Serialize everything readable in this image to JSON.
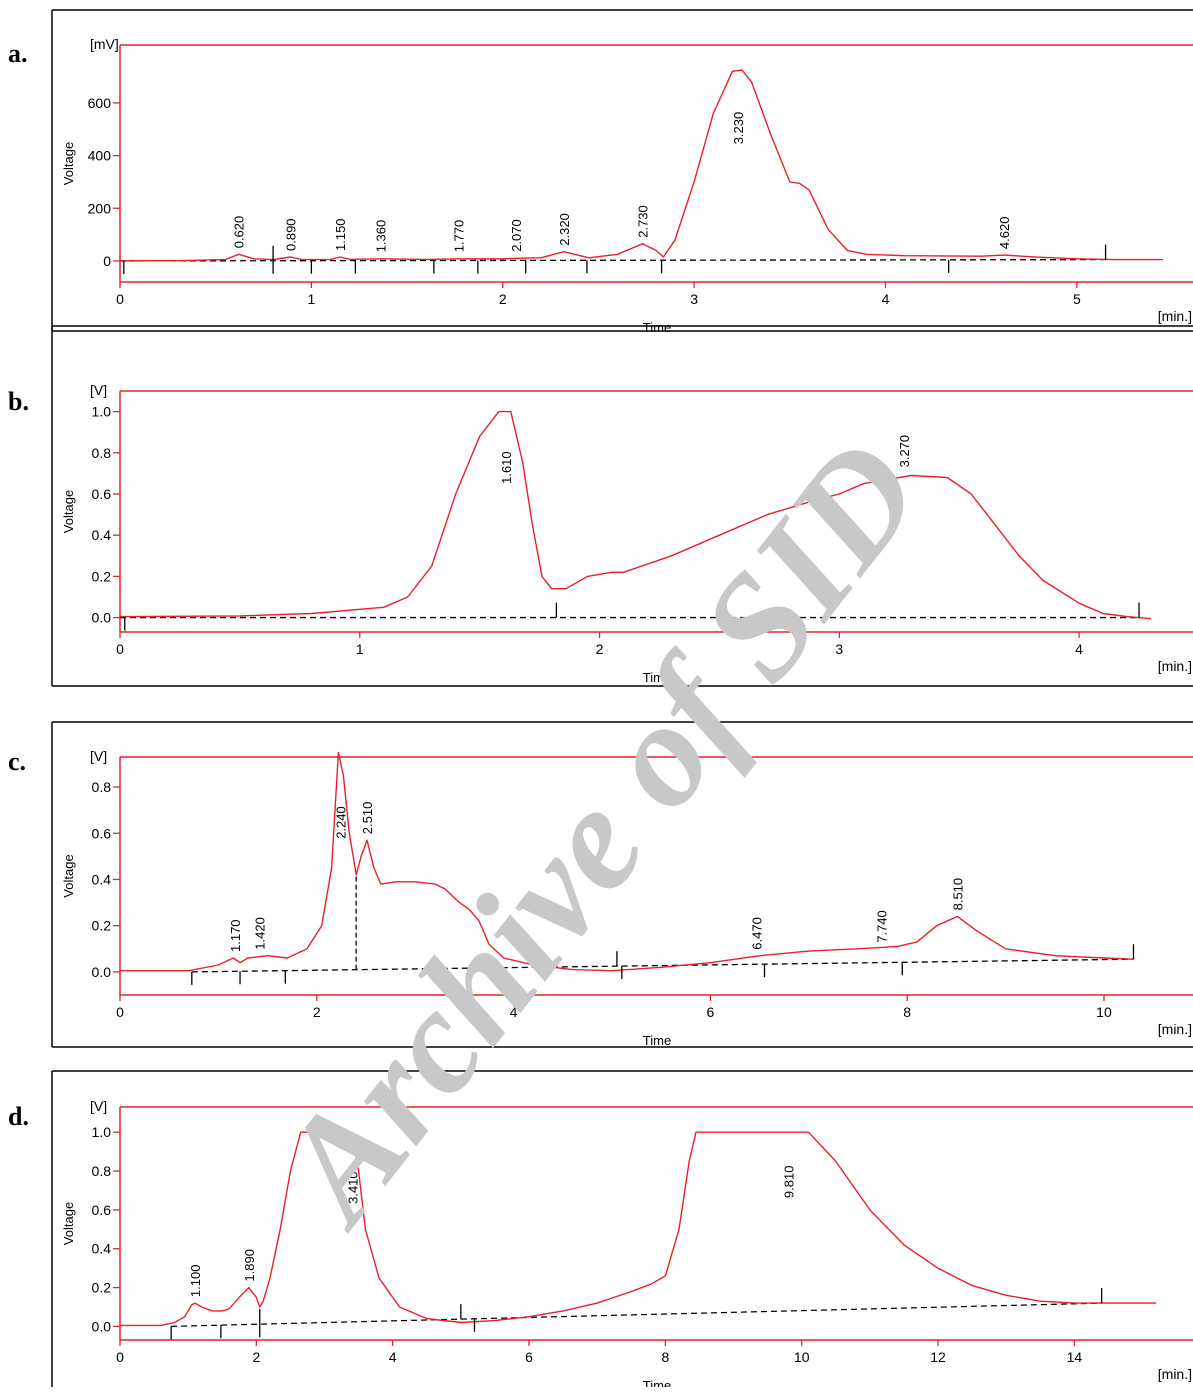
{
  "watermark": "Archive of SID",
  "chart_data": [
    {
      "panel": "a.",
      "type": "line",
      "unit": "[mV]",
      "xlabel": "Time",
      "xunit": "[min.]",
      "ylabel": "Voltage",
      "xlim": [
        0,
        5.45
      ],
      "ylim": [
        -80,
        820
      ],
      "xticks": [
        0,
        1,
        2,
        3,
        4,
        5
      ],
      "yticks": [
        0,
        200,
        400,
        600
      ],
      "x_tick_labels": [
        "0",
        "1",
        "2",
        "3",
        "4",
        "5"
      ],
      "y_tick_labels": [
        "0",
        "200",
        "400",
        "600"
      ],
      "series": [
        {
          "values": [
            [
              0,
              0
            ],
            [
              0.3,
              1
            ],
            [
              0.55,
              5
            ],
            [
              0.62,
              25
            ],
            [
              0.7,
              8
            ],
            [
              0.8,
              5
            ],
            [
              0.89,
              15
            ],
            [
              0.95,
              5
            ],
            [
              1.1,
              6
            ],
            [
              1.15,
              15
            ],
            [
              1.2,
              6
            ],
            [
              1.36,
              8
            ],
            [
              1.6,
              6
            ],
            [
              1.77,
              8
            ],
            [
              2.0,
              8
            ],
            [
              2.07,
              10
            ],
            [
              2.2,
              12
            ],
            [
              2.32,
              35
            ],
            [
              2.45,
              12
            ],
            [
              2.6,
              25
            ],
            [
              2.73,
              65
            ],
            [
              2.8,
              40
            ],
            [
              2.84,
              15
            ],
            [
              2.9,
              80
            ],
            [
              3.0,
              300
            ],
            [
              3.1,
              560
            ],
            [
              3.2,
              720
            ],
            [
              3.25,
              725
            ],
            [
              3.3,
              680
            ],
            [
              3.4,
              480
            ],
            [
              3.5,
              300
            ],
            [
              3.55,
              295
            ],
            [
              3.6,
              270
            ],
            [
              3.7,
              120
            ],
            [
              3.8,
              40
            ],
            [
              3.9,
              25
            ],
            [
              4.1,
              20
            ],
            [
              4.5,
              18
            ],
            [
              4.62,
              22
            ],
            [
              4.8,
              14
            ],
            [
              5.0,
              8
            ],
            [
              5.2,
              5
            ],
            [
              5.45,
              5
            ]
          ]
        }
      ],
      "baseline": [
        [
          0,
          0
        ],
        [
          5.15,
          5
        ]
      ],
      "peak_labels": [
        {
          "x": 0.62,
          "y": 25,
          "text": "0.620"
        },
        {
          "x": 0.89,
          "y": 15,
          "text": "0.890"
        },
        {
          "x": 1.15,
          "y": 15,
          "text": "1.150"
        },
        {
          "x": 1.36,
          "y": 10,
          "text": "1.360"
        },
        {
          "x": 1.77,
          "y": 10,
          "text": "1.770"
        },
        {
          "x": 2.07,
          "y": 12,
          "text": "2.070"
        },
        {
          "x": 2.32,
          "y": 35,
          "text": "2.320"
        },
        {
          "x": 2.73,
          "y": 65,
          "text": "2.730"
        },
        {
          "x": 3.23,
          "y": 420,
          "text": "3.230"
        },
        {
          "x": 4.62,
          "y": 22,
          "text": "4.620"
        }
      ],
      "markers_down": [
        0.02,
        0.8,
        1.0,
        1.23,
        1.64,
        1.87,
        2.12,
        2.44,
        2.83,
        4.33
      ],
      "markers_up": [
        0.8,
        5.15
      ]
    },
    {
      "panel": "b.",
      "type": "line",
      "unit": "[V]",
      "xlabel": "Time",
      "xunit": "[min.]",
      "ylabel": "Voltage",
      "xlim": [
        0,
        4.35
      ],
      "ylim": [
        -0.07,
        1.1
      ],
      "xticks": [
        0,
        1,
        2,
        3,
        4
      ],
      "yticks": [
        0.0,
        0.2,
        0.4,
        0.6,
        0.8,
        1.0
      ],
      "x_tick_labels": [
        "0",
        "1",
        "2",
        "3",
        "4"
      ],
      "y_tick_labels": [
        "0.0",
        "0.2",
        "0.4",
        "0.6",
        "0.8",
        "1.0"
      ],
      "series": [
        {
          "values": [
            [
              0,
              0.005
            ],
            [
              0.5,
              0.008
            ],
            [
              0.8,
              0.02
            ],
            [
              1.0,
              0.04
            ],
            [
              1.1,
              0.05
            ],
            [
              1.2,
              0.1
            ],
            [
              1.3,
              0.25
            ],
            [
              1.4,
              0.6
            ],
            [
              1.5,
              0.88
            ],
            [
              1.58,
              1.0
            ],
            [
              1.63,
              1.0
            ],
            [
              1.68,
              0.75
            ],
            [
              1.72,
              0.45
            ],
            [
              1.76,
              0.2
            ],
            [
              1.8,
              0.14
            ],
            [
              1.86,
              0.14
            ],
            [
              1.95,
              0.2
            ],
            [
              2.05,
              0.22
            ],
            [
              2.1,
              0.22
            ],
            [
              2.3,
              0.3
            ],
            [
              2.5,
              0.4
            ],
            [
              2.7,
              0.5
            ],
            [
              2.9,
              0.57
            ],
            [
              3.0,
              0.6
            ],
            [
              3.1,
              0.65
            ],
            [
              3.3,
              0.69
            ],
            [
              3.45,
              0.68
            ],
            [
              3.55,
              0.6
            ],
            [
              3.65,
              0.45
            ],
            [
              3.75,
              0.3
            ],
            [
              3.85,
              0.18
            ],
            [
              4.0,
              0.07
            ],
            [
              4.1,
              0.02
            ],
            [
              4.2,
              0.005
            ],
            [
              4.3,
              -0.005
            ]
          ]
        }
      ],
      "baseline": [
        [
          0,
          0
        ],
        [
          4.25,
          0
        ]
      ],
      "peak_labels": [
        {
          "x": 1.61,
          "y": 0.62,
          "text": "1.610"
        },
        {
          "x": 3.27,
          "y": 0.7,
          "text": "3.270"
        }
      ],
      "markers_down": [
        0.02
      ],
      "markers_up": [
        1.82,
        4.25
      ]
    },
    {
      "panel": "c.",
      "type": "line",
      "unit": "[V]",
      "xlabel": "Time",
      "xunit": "[min.]",
      "ylabel": "Voltage",
      "xlim": [
        0,
        10.6
      ],
      "ylim": [
        -0.1,
        0.93
      ],
      "xticks": [
        0,
        2,
        4,
        6,
        8,
        10
      ],
      "yticks": [
        0.0,
        0.2,
        0.4,
        0.6,
        0.8
      ],
      "x_tick_labels": [
        "0",
        "2",
        "4",
        "6",
        "8",
        "10"
      ],
      "y_tick_labels": [
        "0.0",
        "0.2",
        "0.4",
        "0.6",
        "0.8"
      ],
      "series": [
        {
          "values": [
            [
              0,
              0.005
            ],
            [
              0.7,
              0.005
            ],
            [
              1.0,
              0.03
            ],
            [
              1.15,
              0.06
            ],
            [
              1.22,
              0.04
            ],
            [
              1.3,
              0.06
            ],
            [
              1.5,
              0.07
            ],
            [
              1.7,
              0.06
            ],
            [
              1.9,
              0.1
            ],
            [
              2.05,
              0.2
            ],
            [
              2.15,
              0.45
            ],
            [
              2.22,
              0.95
            ],
            [
              2.27,
              0.85
            ],
            [
              2.33,
              0.6
            ],
            [
              2.4,
              0.42
            ],
            [
              2.45,
              0.5
            ],
            [
              2.51,
              0.57
            ],
            [
              2.58,
              0.45
            ],
            [
              2.65,
              0.38
            ],
            [
              2.8,
              0.39
            ],
            [
              3.0,
              0.39
            ],
            [
              3.2,
              0.38
            ],
            [
              3.3,
              0.36
            ],
            [
              3.45,
              0.3
            ],
            [
              3.55,
              0.27
            ],
            [
              3.65,
              0.22
            ],
            [
              3.75,
              0.12
            ],
            [
              3.9,
              0.06
            ],
            [
              4.2,
              0.03
            ],
            [
              4.6,
              0.01
            ],
            [
              5.0,
              0.005
            ],
            [
              5.5,
              0.02
            ],
            [
              6.0,
              0.04
            ],
            [
              6.5,
              0.07
            ],
            [
              7.0,
              0.09
            ],
            [
              7.5,
              0.1
            ],
            [
              7.9,
              0.11
            ],
            [
              8.1,
              0.13
            ],
            [
              8.3,
              0.2
            ],
            [
              8.51,
              0.24
            ],
            [
              8.7,
              0.18
            ],
            [
              9.0,
              0.1
            ],
            [
              9.5,
              0.07
            ],
            [
              10.0,
              0.06
            ],
            [
              10.3,
              0.055
            ]
          ]
        }
      ],
      "baseline": [
        [
          0.73,
          0.0
        ],
        [
          10.3,
          0.055
        ]
      ],
      "peak_labels": [
        {
          "x": 1.17,
          "y": 0.06,
          "text": "1.170"
        },
        {
          "x": 1.42,
          "y": 0.07,
          "text": "1.420"
        },
        {
          "x": 2.24,
          "y": 0.55,
          "text": "2.240"
        },
        {
          "x": 2.51,
          "y": 0.57,
          "text": "2.510"
        },
        {
          "x": 6.47,
          "y": 0.07,
          "text": "6.470"
        },
        {
          "x": 7.74,
          "y": 0.1,
          "text": "7.740"
        },
        {
          "x": 8.51,
          "y": 0.24,
          "text": "8.510"
        }
      ],
      "markers_down": [
        0.73,
        1.22,
        1.68,
        5.1,
        6.55,
        7.95
      ],
      "markers_up": [
        5.05,
        10.3
      ],
      "dropline": [
        2.4
      ]
    },
    {
      "panel": "d.",
      "type": "line",
      "unit": "[V]",
      "xlabel": "Time",
      "xunit": "[min.]",
      "ylabel": "Voltage",
      "xlim": [
        0,
        15.3
      ],
      "ylim": [
        -0.07,
        1.13
      ],
      "xticks": [
        0,
        2,
        4,
        6,
        8,
        10,
        12,
        14
      ],
      "yticks": [
        0.0,
        0.2,
        0.4,
        0.6,
        0.8,
        1.0
      ],
      "x_tick_labels": [
        "0",
        "2",
        "4",
        "6",
        "8",
        "10",
        "12",
        "14"
      ],
      "y_tick_labels": [
        "0.0",
        "0.2",
        "0.4",
        "0.6",
        "0.8",
        "1.0"
      ],
      "series": [
        {
          "values": [
            [
              0,
              0.005
            ],
            [
              0.6,
              0.005
            ],
            [
              0.8,
              0.02
            ],
            [
              0.95,
              0.05
            ],
            [
              1.05,
              0.11
            ],
            [
              1.1,
              0.12
            ],
            [
              1.2,
              0.1
            ],
            [
              1.35,
              0.08
            ],
            [
              1.5,
              0.08
            ],
            [
              1.6,
              0.09
            ],
            [
              1.75,
              0.15
            ],
            [
              1.89,
              0.2
            ],
            [
              2.0,
              0.15
            ],
            [
              2.05,
              0.1
            ],
            [
              2.1,
              0.13
            ],
            [
              2.2,
              0.25
            ],
            [
              2.35,
              0.5
            ],
            [
              2.5,
              0.8
            ],
            [
              2.65,
              1.0
            ],
            [
              3.4,
              1.0
            ],
            [
              3.5,
              0.8
            ],
            [
              3.6,
              0.5
            ],
            [
              3.8,
              0.25
            ],
            [
              4.1,
              0.1
            ],
            [
              4.5,
              0.04
            ],
            [
              5.0,
              0.02
            ],
            [
              5.5,
              0.03
            ],
            [
              6.0,
              0.05
            ],
            [
              6.5,
              0.08
            ],
            [
              7.0,
              0.12
            ],
            [
              7.5,
              0.18
            ],
            [
              7.8,
              0.22
            ],
            [
              8.0,
              0.26
            ],
            [
              8.2,
              0.5
            ],
            [
              8.35,
              0.85
            ],
            [
              8.45,
              1.0
            ],
            [
              10.1,
              1.0
            ],
            [
              10.5,
              0.85
            ],
            [
              11.0,
              0.6
            ],
            [
              11.5,
              0.42
            ],
            [
              12.0,
              0.3
            ],
            [
              12.5,
              0.21
            ],
            [
              13.0,
              0.16
            ],
            [
              13.5,
              0.13
            ],
            [
              14.0,
              0.12
            ],
            [
              14.5,
              0.12
            ],
            [
              15.2,
              0.12
            ]
          ]
        }
      ],
      "baseline": [
        [
          0.75,
          0.0
        ],
        [
          14.4,
          0.12
        ]
      ],
      "peak_labels": [
        {
          "x": 1.1,
          "y": 0.12,
          "text": "1.100"
        },
        {
          "x": 1.89,
          "y": 0.2,
          "text": "1.890"
        },
        {
          "x": 3.41,
          "y": 0.6,
          "text": "3.410"
        },
        {
          "x": 9.81,
          "y": 0.63,
          "text": "9.810"
        }
      ],
      "markers_down": [
        0.75,
        1.48,
        2.05,
        5.2
      ],
      "markers_up": [
        2.05,
        5.0,
        14.4
      ]
    }
  ]
}
